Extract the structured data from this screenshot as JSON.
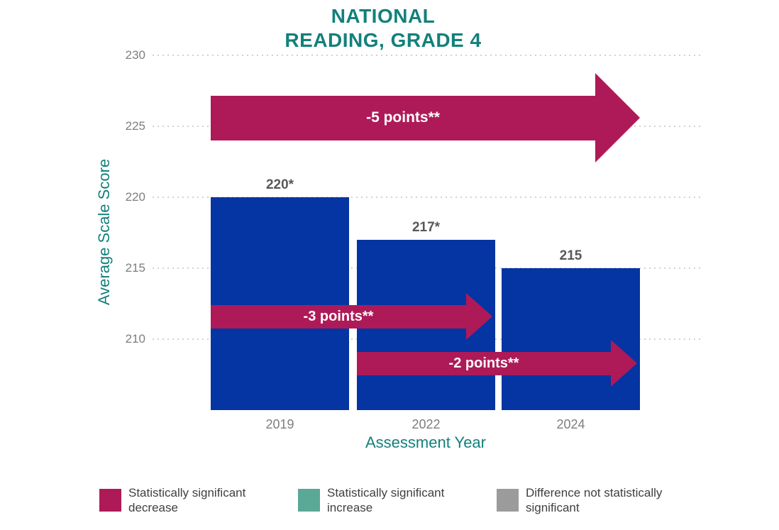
{
  "title": {
    "line1": "NATIONAL",
    "line2": "READING, GRADE 4"
  },
  "chart_data": {
    "type": "bar",
    "title": "NATIONAL READING, GRADE 4",
    "categories": [
      "2019",
      "2022",
      "2024"
    ],
    "values": [
      220,
      217,
      215
    ],
    "bar_labels": [
      "220*",
      "217*",
      "215"
    ],
    "xlabel": "Assessment Year",
    "ylabel": "Average Scale Score",
    "ylim": [
      205,
      230
    ],
    "y_ticks": [
      230,
      225,
      220,
      215,
      210
    ],
    "grid": "horizontal-dotted",
    "legend_position": "bottom",
    "annotations": [
      {
        "label": "-5 points**",
        "from": "2019",
        "to": "2024",
        "y_value": 225.6,
        "size": "large"
      },
      {
        "label": "-3 points**",
        "from": "2019",
        "to": "2022",
        "y_value": 211.6,
        "size": "small"
      },
      {
        "label": "-2 points**",
        "from": "2022",
        "to": "2024",
        "y_value": 208.3,
        "size": "small"
      }
    ]
  },
  "legend": {
    "items": [
      {
        "label": "Statistically significant decrease",
        "color": "#ae1a58"
      },
      {
        "label": "Statistically significant increase",
        "color": "#5ba897"
      },
      {
        "label": "Difference not statistically significant",
        "color": "#9b9b9b"
      }
    ]
  },
  "colors": {
    "bar_blue": "#0534a3",
    "arrow_crimson": "#ae1a58",
    "teal_text": "#13807b",
    "tick_gray": "#7e7e7e",
    "bar_label_gray": "#58585a",
    "legend_text": "#3f3f3f",
    "gridline": "#d2d2d2"
  }
}
